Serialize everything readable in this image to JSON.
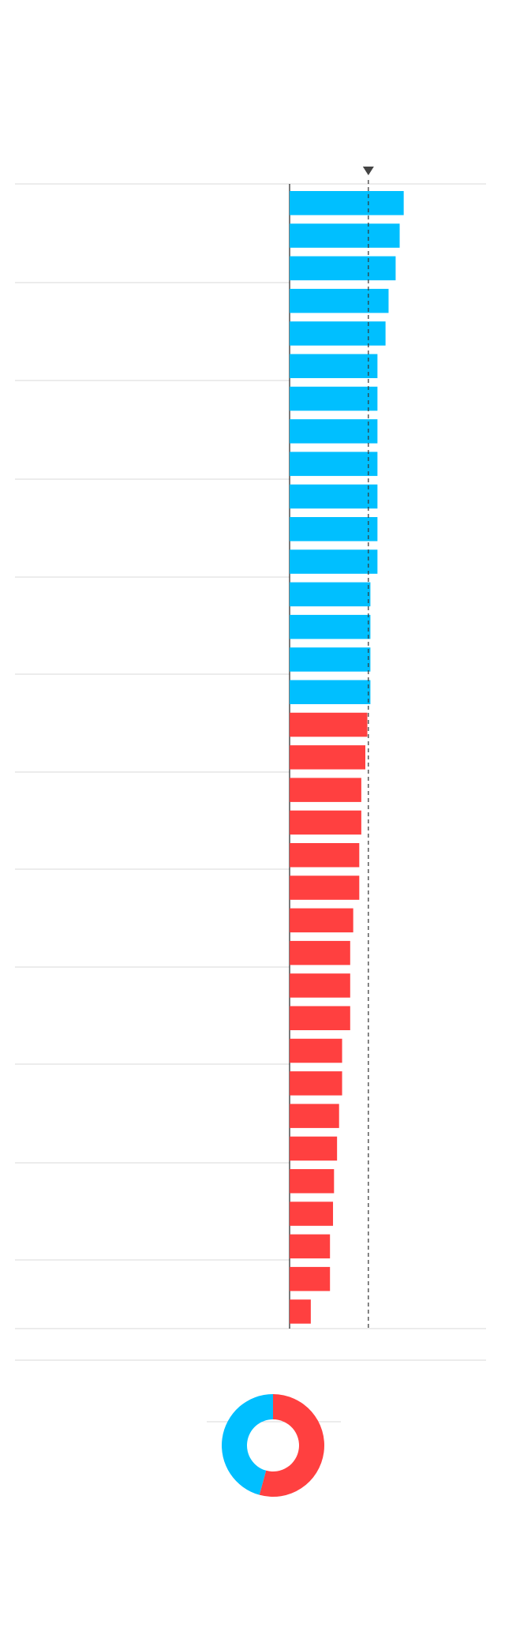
{
  "chart_data": [
    {
      "type": "bar",
      "orientation": "horizontal",
      "series": [
        {
          "color": "#00bfff",
          "values": [
            113,
            109,
            105,
            98,
            95,
            87,
            87,
            87,
            87,
            87,
            87,
            87,
            80,
            80,
            80,
            80
          ]
        },
        {
          "color": "#ff4040",
          "values": [
            77,
            75,
            71,
            71,
            69,
            69,
            63,
            60,
            60,
            60,
            52,
            52,
            49,
            47,
            44,
            43,
            40,
            40,
            21
          ]
        }
      ],
      "reference_line": 78
    },
    {
      "type": "pie",
      "donut": true,
      "values": [
        19,
        16
      ],
      "colors": [
        "#ff4040",
        "#00bfff"
      ]
    }
  ]
}
